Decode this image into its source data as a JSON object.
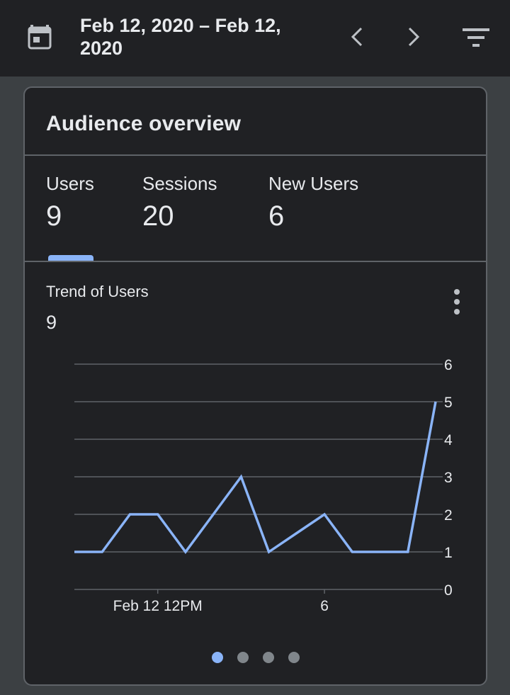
{
  "topbar": {
    "date_range": "Feb 12, 2020 – Feb 12, 2020",
    "icons": {
      "calendar": "calendar-icon",
      "prev": "chevron-left-icon",
      "next": "chevron-right-icon",
      "filter": "filter-icon"
    }
  },
  "card": {
    "title": "Audience overview",
    "metrics": [
      {
        "label": "Users",
        "value": "9"
      },
      {
        "label": "Sessions",
        "value": "20"
      },
      {
        "label": "New Users",
        "value": "6"
      }
    ],
    "trend": {
      "label": "Trend of Users",
      "value": "9"
    },
    "pagination": {
      "count": 4,
      "active": 0
    }
  },
  "colors": {
    "accent": "#8ab4f8",
    "background": "#202124",
    "gridline": "#5f6368",
    "inactive_dot": "#80868b"
  },
  "chart_data": {
    "type": "line",
    "title": "",
    "xlabel": "",
    "ylabel": "",
    "x_tick_labels": [
      {
        "label": "Feb 12 12PM",
        "index": 3
      },
      {
        "label": "6",
        "index": 9
      }
    ],
    "y_ticks": [
      "0",
      "1",
      "2",
      "3",
      "4",
      "5",
      "6"
    ],
    "ylim": [
      0,
      6
    ],
    "grid": true,
    "series": [
      {
        "values": [
          1,
          1,
          2,
          2,
          1,
          2,
          3,
          1,
          1.5,
          2,
          1,
          1,
          1,
          5
        ]
      }
    ]
  }
}
